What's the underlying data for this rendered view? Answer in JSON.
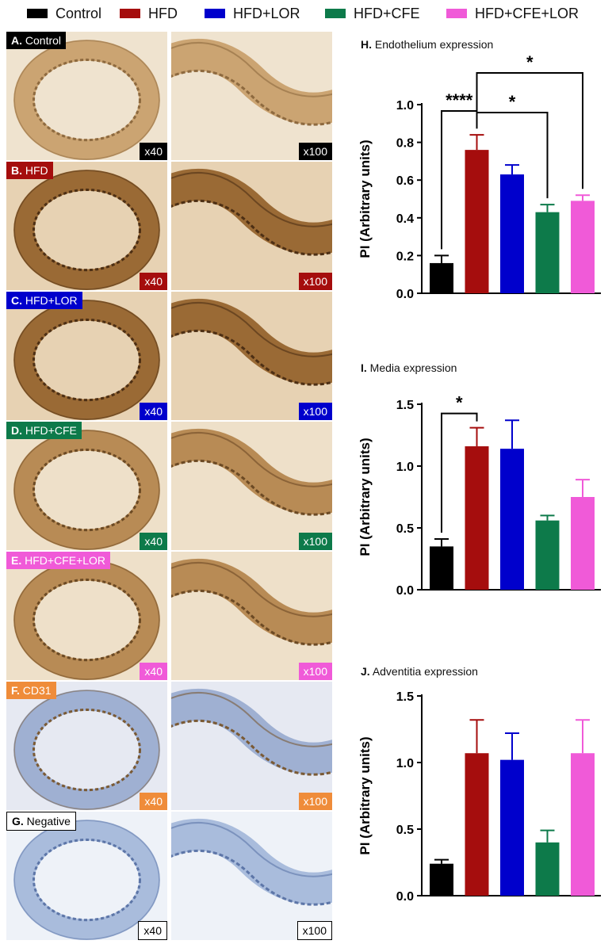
{
  "legend": [
    {
      "label": "Control",
      "color": "#000000"
    },
    {
      "label": "HFD",
      "color": "#a50d0d"
    },
    {
      "label": "HFD+LOR",
      "color": "#0000cc"
    },
    {
      "label": "HFD+CFE",
      "color": "#0d7a4a"
    },
    {
      "label": "HFD+CFE+LOR",
      "color": "#f05ad8"
    }
  ],
  "panels": [
    {
      "letter": "A.",
      "name": "Control",
      "color": "#000000",
      "left_mag": "x40",
      "right_mag": "x100",
      "tone": "light-brown"
    },
    {
      "letter": "B.",
      "name": "HFD",
      "color": "#a50d0d",
      "left_mag": "x40",
      "right_mag": "x100",
      "tone": "dark-brown"
    },
    {
      "letter": "C.",
      "name": "HFD+LOR",
      "color": "#0000cc",
      "left_mag": "x40",
      "right_mag": "x100",
      "tone": "dark-brown"
    },
    {
      "letter": "D.",
      "name": "HFD+CFE",
      "color": "#0d7a4a",
      "left_mag": "x40",
      "right_mag": "x100",
      "tone": "brown"
    },
    {
      "letter": "E.",
      "name": "HFD+CFE+LOR",
      "color": "#f05ad8",
      "left_mag": "x40",
      "right_mag": "x100",
      "tone": "brown"
    },
    {
      "letter": "F.",
      "name": "CD31",
      "color": "#ef8c3a",
      "left_mag": "x40",
      "right_mag": "x100",
      "tone": "blue-brown"
    },
    {
      "letter": "G.",
      "name": "Negative",
      "color": "#ffffff",
      "left_mag": "x40",
      "right_mag": "x100",
      "tone": "blue"
    }
  ],
  "chart_data": [
    {
      "type": "bar",
      "letter": "H.",
      "title": "Endothelium expression",
      "ylabel": "PI (Arbitrary units)",
      "categories": [
        "Control",
        "HFD",
        "HFD+LOR",
        "HFD+CFE",
        "HFD+CFE+LOR"
      ],
      "values": [
        0.16,
        0.76,
        0.63,
        0.43,
        0.49
      ],
      "errors": [
        0.04,
        0.08,
        0.05,
        0.04,
        0.03
      ],
      "ylim": [
        0,
        1.0
      ],
      "yticks": [
        "0.0",
        "0.2",
        "0.4",
        "0.6",
        "0.8",
        "1.0"
      ],
      "significance": [
        {
          "from": 0,
          "to": 1,
          "label": "****"
        },
        {
          "from": 1,
          "to": 3,
          "label": "*"
        },
        {
          "from": 1,
          "to": 4,
          "label": "*"
        }
      ]
    },
    {
      "type": "bar",
      "letter": "I.",
      "title": "Media expression",
      "ylabel": "PI (Arbitrary units)",
      "categories": [
        "Control",
        "HFD",
        "HFD+LOR",
        "HFD+CFE",
        "HFD+CFE+LOR"
      ],
      "values": [
        0.35,
        1.16,
        1.14,
        0.56,
        0.75
      ],
      "errors": [
        0.06,
        0.15,
        0.23,
        0.04,
        0.14
      ],
      "ylim": [
        0,
        1.5
      ],
      "yticks": [
        "0.0",
        "0.5",
        "1.0",
        "1.5"
      ],
      "significance": [
        {
          "from": 0,
          "to": 1,
          "label": "*"
        }
      ]
    },
    {
      "type": "bar",
      "letter": "J.",
      "title": "Adventitia expression",
      "ylabel": "PI (Arbitrary units)",
      "categories": [
        "Control",
        "HFD",
        "HFD+LOR",
        "HFD+CFE",
        "HFD+CFE+LOR"
      ],
      "values": [
        0.24,
        1.07,
        1.02,
        0.4,
        1.07
      ],
      "errors": [
        0.03,
        0.25,
        0.2,
        0.09,
        0.25
      ],
      "ylim": [
        0,
        1.5
      ],
      "yticks": [
        "0.0",
        "0.5",
        "1.0",
        "1.5"
      ],
      "significance": []
    }
  ]
}
